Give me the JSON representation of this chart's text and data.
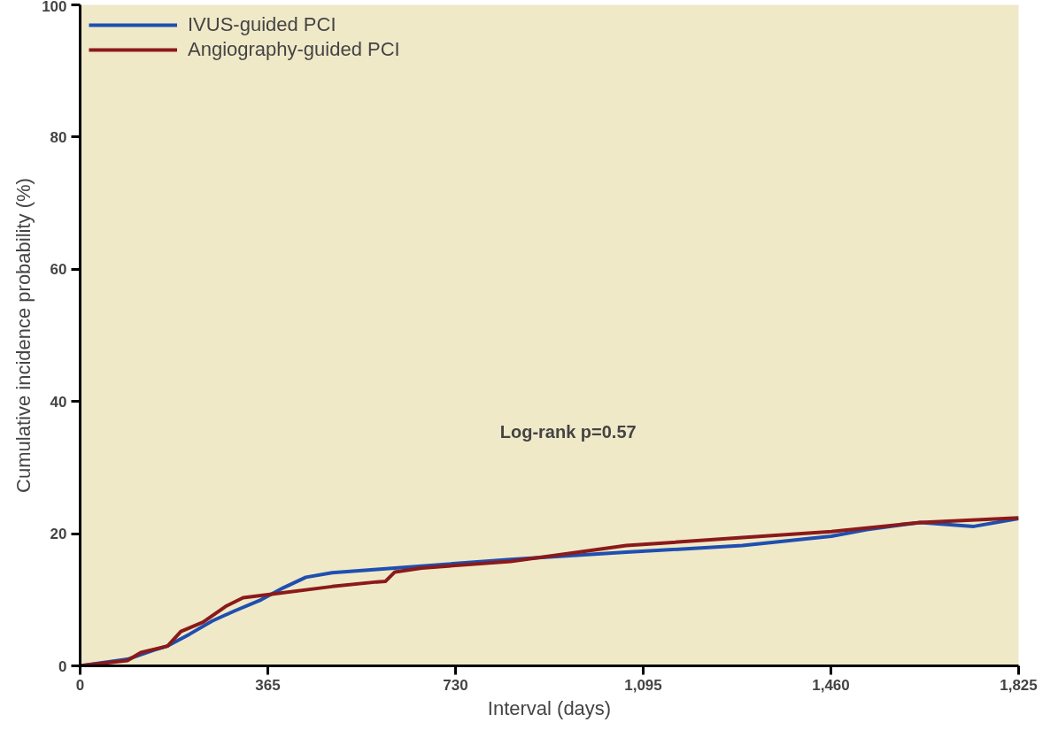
{
  "chart_data": {
    "type": "line",
    "xlabel": "Interval (days)",
    "ylabel": "Cumulative incidence probability (%)",
    "xlim": [
      0,
      1825
    ],
    "xticks": [
      0,
      365,
      730,
      {
        "value": 1095,
        "label": "1,095"
      },
      {
        "value": 1460,
        "label": "1,460"
      },
      {
        "value": 1825,
        "label": "1,825"
      }
    ],
    "ylim": [
      0,
      100
    ],
    "yticks": [
      0,
      20,
      40,
      60,
      80,
      100
    ],
    "grid": false,
    "legend": "top left",
    "marker": "none",
    "line_style": "solid",
    "annotations": [
      "Log-rank p=0.57"
    ],
    "series": [
      {
        "name": "IVUS-guided PCI",
        "color": "#1f4fb0",
        "x": [
          0,
          92,
          118,
          144,
          170,
          213,
          257,
          300,
          352,
          395,
          439,
          490,
          577,
          664,
          837,
          1062,
          1288,
          1461,
          1530,
          1634,
          1738,
          1825
        ],
        "values": [
          0,
          1.0,
          1.7,
          2.4,
          3.0,
          4.8,
          6.8,
          8.3,
          10.0,
          11.8,
          13.4,
          14.1,
          14.6,
          15.1,
          16.1,
          17.2,
          18.2,
          19.6,
          20.6,
          21.7,
          21.1,
          22.3
        ]
      },
      {
        "name": "Angiography-guided PCI",
        "color": "#8b1a1a",
        "x": [
          0,
          92,
          118,
          170,
          196,
          239,
          283,
          317,
          369,
          490,
          577,
          594,
          612,
          664,
          837,
          941,
          1062,
          1288,
          1461,
          1634,
          1825
        ],
        "values": [
          0,
          0.8,
          2.0,
          3.0,
          5.2,
          6.6,
          9.0,
          10.3,
          10.8,
          12.0,
          12.7,
          12.8,
          14.2,
          14.8,
          15.8,
          16.9,
          18.2,
          19.4,
          20.3,
          21.7,
          22.4
        ]
      }
    ]
  }
}
